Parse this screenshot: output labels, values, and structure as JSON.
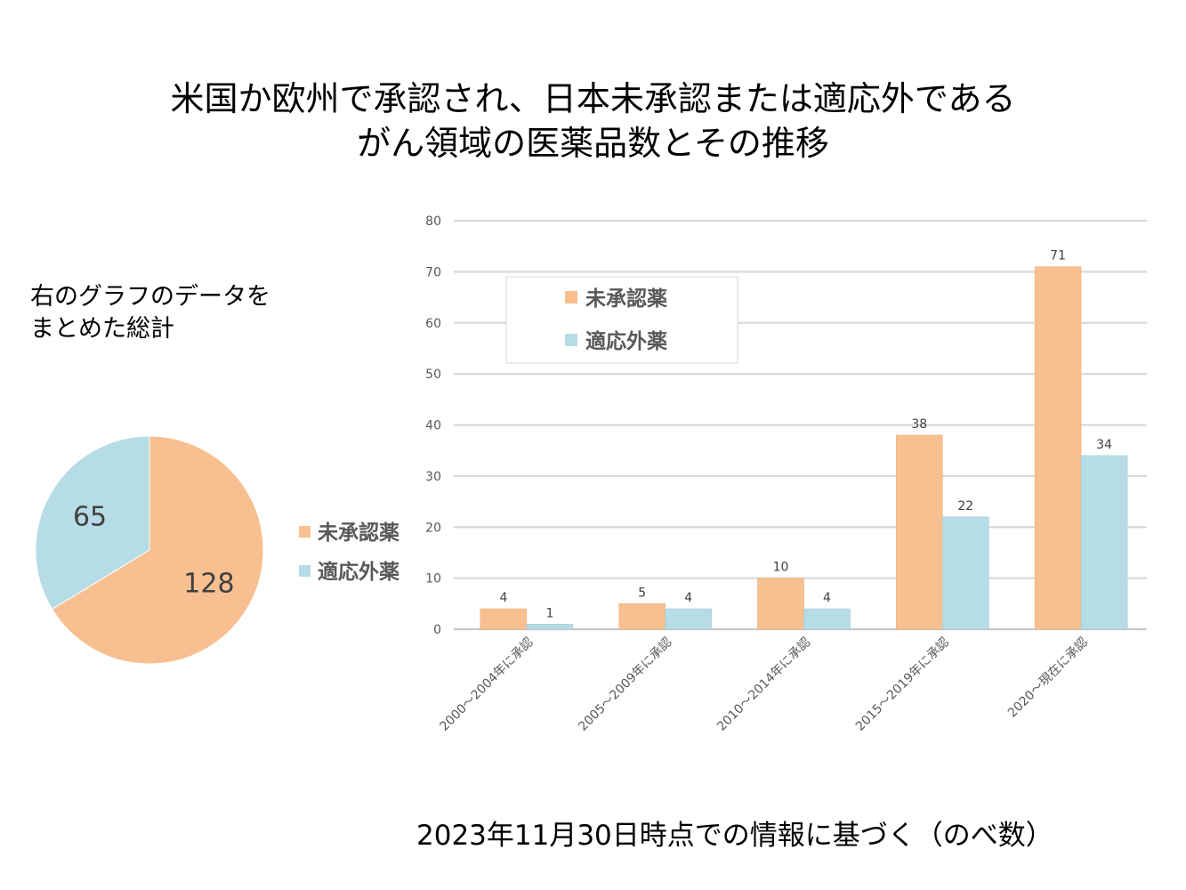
{
  "page": {
    "title_line1": "米国か欧州で承認され、日本未承認または適応外である",
    "title_line2": "がん領域の医薬品数とその推移",
    "summary_note_line1": "右のグラフのデータを",
    "summary_note_line2": "まとめた総計",
    "footnote": "2023年11月30日時点での情報に基づく（のべ数）"
  },
  "chart_data": [
    {
      "type": "pie",
      "title": "",
      "slices": [
        {
          "name": "未承認薬",
          "value": 128,
          "label": "128",
          "color": "#F8C090"
        },
        {
          "name": "適応外薬",
          "value": 65,
          "label": "65",
          "color": "#B6DCE6"
        }
      ],
      "legend": [
        "未承認薬",
        "適応外薬"
      ],
      "legend_position": "right"
    },
    {
      "type": "bar",
      "title": "",
      "xlabel": "",
      "ylabel": "",
      "categories": [
        "2000～2004年に承認",
        "2005～2009年に承認",
        "2010～2014年に承認",
        "2015～2019年に承認",
        "2020～現在に承認"
      ],
      "series": [
        {
          "name": "未承認薬",
          "values": [
            4,
            5,
            10,
            38,
            71
          ],
          "color": "#F8C090"
        },
        {
          "name": "適応外薬",
          "values": [
            1,
            4,
            4,
            22,
            34
          ],
          "color": "#B6DCE6"
        }
      ],
      "ylim": [
        0,
        80
      ],
      "yticks": [
        "0",
        "10",
        "20",
        "30",
        "40",
        "50",
        "60",
        "70",
        "80"
      ],
      "grid": true,
      "legend_position": "top-left"
    }
  ]
}
